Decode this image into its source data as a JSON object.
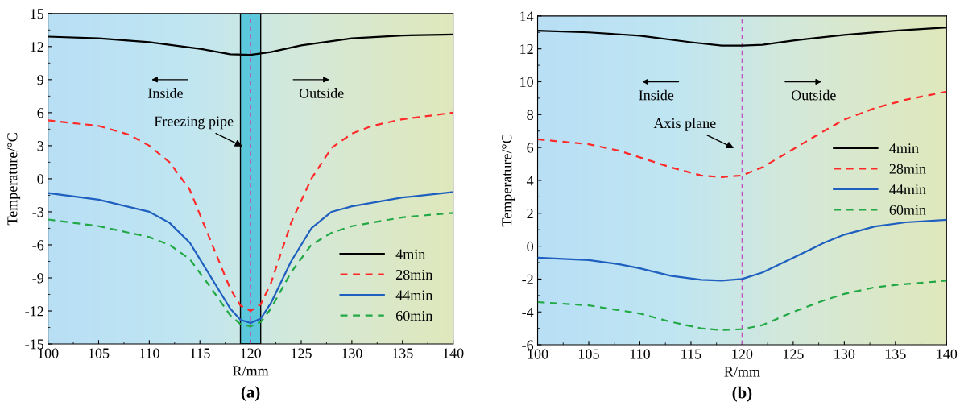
{
  "chart_data": [
    {
      "type": "line",
      "xlabel": "R/mm",
      "ylabel": "Temperature/°C",
      "xlim": [
        100,
        140
      ],
      "xticks": [
        100,
        105,
        110,
        115,
        120,
        125,
        130,
        135,
        140
      ],
      "ylim": [
        -15,
        15
      ],
      "yticks": [
        -15,
        -12,
        -9,
        -6,
        -3,
        0,
        3,
        6,
        9,
        12,
        15
      ],
      "grid": false,
      "legend": "bottom right",
      "annotations": [
        "Inside",
        "Outside",
        "Freezing pipe",
        "(a)"
      ],
      "bands": [
        {
          "axis": "x",
          "from": 119,
          "to": 121,
          "color": "#5bc8dc"
        }
      ],
      "ref_lines": [
        {
          "axis": "x",
          "value": 120,
          "color": "#c050c0",
          "line_style": "dashed"
        }
      ],
      "series": [
        {
          "name": "4min",
          "color": "#000000",
          "line_style": "solid",
          "x": [
            100,
            105,
            110,
            115,
            118,
            120,
            122,
            125,
            130,
            135,
            140
          ],
          "values": [
            12.9,
            12.75,
            12.4,
            11.8,
            11.3,
            11.25,
            11.5,
            12.1,
            12.75,
            13.0,
            13.1
          ]
        },
        {
          "name": "28min",
          "color": "#ff2a2a",
          "line_style": "dashed",
          "x": [
            100,
            105,
            108,
            110,
            112,
            114,
            116,
            118,
            119,
            120,
            121,
            122,
            124,
            126,
            128,
            130,
            132,
            135,
            140
          ],
          "values": [
            5.3,
            4.8,
            4.0,
            3.0,
            1.5,
            -1.0,
            -5.5,
            -10,
            -11.5,
            -12.0,
            -11.4,
            -9.5,
            -4,
            0,
            2.8,
            4.1,
            4.8,
            5.4,
            6.0
          ]
        },
        {
          "name": "44min",
          "color": "#1f5fbf",
          "line_style": "solid",
          "x": [
            100,
            105,
            110,
            112,
            114,
            116,
            118,
            119,
            120,
            121,
            122,
            124,
            126,
            128,
            130,
            135,
            140
          ],
          "values": [
            -1.3,
            -1.9,
            -3.0,
            -4.0,
            -5.8,
            -8.8,
            -11.8,
            -12.8,
            -13.1,
            -12.7,
            -11.3,
            -7.5,
            -4.5,
            -3.0,
            -2.5,
            -1.7,
            -1.2
          ]
        },
        {
          "name": "60min",
          "color": "#22a845",
          "line_style": "dashed",
          "x": [
            100,
            105,
            110,
            112,
            114,
            116,
            118,
            119,
            120,
            121,
            122,
            124,
            126,
            128,
            130,
            135,
            140
          ],
          "values": [
            -3.7,
            -4.3,
            -5.3,
            -6.0,
            -7.3,
            -9.8,
            -12.4,
            -13.2,
            -13.4,
            -13.0,
            -11.8,
            -8.5,
            -6.0,
            -4.9,
            -4.3,
            -3.5,
            -3.1
          ]
        }
      ]
    },
    {
      "type": "line",
      "xlabel": "R/mm",
      "ylabel": "Temperature/°C",
      "xlim": [
        100,
        140
      ],
      "xticks": [
        100,
        105,
        110,
        115,
        120,
        125,
        130,
        135,
        140
      ],
      "ylim": [
        -6,
        14
      ],
      "yticks": [
        -6,
        -4,
        -2,
        0,
        2,
        4,
        6,
        8,
        10,
        12,
        14
      ],
      "grid": false,
      "legend": "right",
      "annotations": [
        "Inside",
        "Outside",
        "Axis plane",
        "(b)"
      ],
      "ref_lines": [
        {
          "axis": "x",
          "value": 120,
          "color": "#c050c0",
          "line_style": "dashed"
        }
      ],
      "series": [
        {
          "name": "4min",
          "color": "#000000",
          "line_style": "solid",
          "x": [
            100,
            105,
            110,
            115,
            118,
            120,
            122,
            125,
            130,
            135,
            140
          ],
          "values": [
            13.1,
            13.0,
            12.8,
            12.4,
            12.2,
            12.2,
            12.25,
            12.5,
            12.85,
            13.1,
            13.3
          ]
        },
        {
          "name": "28min",
          "color": "#ff2a2a",
          "line_style": "dashed",
          "x": [
            100,
            105,
            108,
            110,
            113,
            116,
            118,
            120,
            122,
            125,
            128,
            130,
            133,
            136,
            140
          ],
          "values": [
            6.5,
            6.2,
            5.8,
            5.4,
            4.8,
            4.3,
            4.2,
            4.3,
            4.8,
            5.9,
            7.0,
            7.7,
            8.4,
            8.9,
            9.4
          ]
        },
        {
          "name": "44min",
          "color": "#1f5fbf",
          "line_style": "solid",
          "x": [
            100,
            105,
            108,
            110,
            113,
            116,
            118,
            120,
            122,
            125,
            128,
            130,
            133,
            136,
            140
          ],
          "values": [
            -0.7,
            -0.85,
            -1.1,
            -1.35,
            -1.8,
            -2.05,
            -2.1,
            -2.0,
            -1.6,
            -0.7,
            0.2,
            0.7,
            1.2,
            1.45,
            1.6
          ]
        },
        {
          "name": "60min",
          "color": "#22a845",
          "line_style": "dashed",
          "x": [
            100,
            105,
            108,
            110,
            113,
            116,
            118,
            120,
            122,
            125,
            128,
            130,
            133,
            136,
            140
          ],
          "values": [
            -3.4,
            -3.6,
            -3.9,
            -4.1,
            -4.6,
            -5.0,
            -5.1,
            -5.05,
            -4.8,
            -4.0,
            -3.3,
            -2.9,
            -2.5,
            -2.3,
            -2.1
          ]
        }
      ]
    }
  ]
}
